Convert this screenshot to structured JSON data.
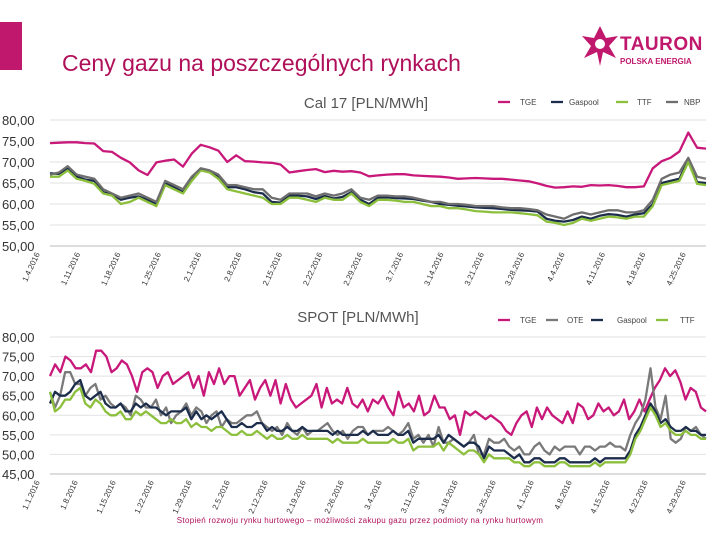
{
  "slide": {
    "title": "Ceny gazu na poszczególnych rynkach",
    "footer": "Stopień rozwoju rynku hurtowego – możliwości zakupu gazu przez podmioty na rynku hurtowym",
    "logo_name": "TAURON",
    "logo_sub": "POLSKA ENERGIA",
    "accent_color": "#c0186c"
  },
  "chart_data": [
    {
      "type": "line",
      "title": "Cal 17 [PLN/MWh]",
      "ylim": [
        50,
        80
      ],
      "yticks": [
        "50,00",
        "55,00",
        "60,00",
        "65,00",
        "70,00",
        "75,00",
        "80,00"
      ],
      "x_tick_labels": [
        "1.4.2016",
        "1.11.2016",
        "1.18.2016",
        "1.25.2016",
        "2.1.2016",
        "2.8.2016",
        "2.15.2016",
        "2.22.2016",
        "2.29.2016",
        "3.7.2016",
        "3.14.2016",
        "3.21.2016",
        "3.28.2016",
        "4.4.2016",
        "4.11.2016",
        "4.18.2016",
        "4.25.2016"
      ],
      "legend_position": "top-right",
      "series": [
        {
          "name": "TGE",
          "color": "#c8187a",
          "values": [
            74.5,
            74.6,
            74.7,
            74.7,
            74.5,
            74.4,
            72.6,
            72.4,
            71.0,
            69.9,
            68.0,
            66.9,
            69.9,
            70.3,
            70.6,
            68.9,
            72.0,
            74.1,
            73.5,
            72.7,
            70.0,
            71.6,
            70.2,
            70.1,
            69.9,
            69.8,
            69.4,
            67.5,
            67.8,
            68.1,
            68.3,
            67.6,
            67.9,
            67.7,
            67.8,
            67.5,
            66.6,
            66.8,
            67.0,
            67.1,
            67.1,
            66.8,
            66.7,
            66.6,
            66.5,
            66.3,
            66.0,
            66.1,
            66.2,
            66.1,
            66.0,
            66.0,
            65.8,
            65.6,
            65.4,
            64.9,
            64.3,
            63.9,
            64.0,
            64.2,
            64.1,
            64.5,
            64.4,
            64.5,
            64.3,
            64.0,
            64.0,
            64.2,
            68.5,
            70.2,
            71.0,
            72.5,
            77.0,
            73.4,
            73.2
          ]
        },
        {
          "name": "Gaspool",
          "color": "#1c2d4c",
          "values": [
            67.3,
            67.2,
            68.5,
            66.5,
            65.8,
            65.5,
            62.8,
            62.3,
            61.0,
            61.5,
            61.8,
            61.0,
            60.0,
            65.0,
            64.0,
            62.8,
            65.8,
            68.2,
            67.8,
            66.5,
            64.0,
            64.0,
            63.5,
            62.8,
            62.5,
            60.5,
            60.3,
            62.0,
            62.0,
            61.8,
            61.2,
            61.9,
            61.3,
            61.7,
            62.8,
            61.0,
            60.0,
            61.5,
            61.6,
            61.4,
            61.3,
            61.2,
            60.8,
            60.5,
            60.0,
            59.8,
            59.6,
            59.4,
            59.2,
            59.1,
            59.0,
            58.8,
            58.6,
            58.5,
            58.4,
            58.2,
            56.5,
            56.0,
            55.8,
            56.2,
            57.0,
            56.5,
            57.2,
            57.6,
            57.4,
            57.0,
            57.5,
            57.8,
            60.0,
            65.0,
            65.5,
            66.0,
            70.5,
            65.2,
            65.0
          ]
        },
        {
          "name": "TTF",
          "color": "#8cbf3c",
          "values": [
            66.5,
            66.5,
            68.0,
            66.0,
            65.5,
            64.8,
            62.5,
            62.0,
            60.0,
            60.5,
            61.5,
            60.5,
            59.5,
            64.5,
            63.5,
            62.5,
            65.5,
            68.0,
            67.5,
            66.0,
            63.5,
            63.0,
            62.5,
            62.0,
            61.5,
            60.0,
            60.0,
            61.5,
            61.5,
            61.0,
            60.5,
            61.5,
            61.0,
            61.0,
            62.5,
            60.5,
            59.5,
            61.0,
            61.0,
            60.8,
            60.5,
            60.5,
            60.0,
            59.5,
            59.5,
            59.0,
            59.0,
            58.7,
            58.3,
            58.2,
            58.0,
            58.0,
            58.0,
            57.8,
            57.6,
            57.3,
            55.8,
            55.5,
            55.0,
            55.5,
            56.5,
            56.0,
            56.5,
            57.0,
            56.8,
            56.5,
            57.0,
            57.0,
            59.5,
            64.5,
            65.0,
            65.5,
            70.0,
            64.8,
            64.5
          ]
        },
        {
          "name": "NBP",
          "color": "#6e6e6e",
          "values": [
            67.0,
            67.5,
            69.0,
            67.0,
            66.5,
            66.0,
            63.5,
            62.5,
            61.5,
            62.0,
            62.5,
            61.5,
            60.5,
            65.5,
            64.5,
            63.5,
            66.5,
            68.5,
            68.0,
            67.0,
            64.5,
            64.5,
            64.0,
            63.5,
            63.5,
            61.5,
            61.0,
            62.5,
            62.5,
            62.5,
            61.8,
            62.5,
            62.0,
            62.5,
            63.5,
            61.5,
            61.0,
            62.0,
            62.0,
            61.8,
            61.8,
            61.5,
            61.0,
            60.5,
            60.5,
            60.0,
            60.0,
            59.8,
            59.5,
            59.5,
            59.5,
            59.2,
            59.0,
            59.0,
            58.8,
            58.5,
            57.5,
            57.0,
            56.5,
            57.5,
            58.0,
            57.5,
            58.0,
            58.5,
            58.5,
            58.0,
            58.0,
            58.5,
            61.0,
            66.0,
            67.0,
            67.5,
            71.0,
            66.5,
            66.0
          ]
        }
      ]
    },
    {
      "type": "line",
      "title": "SPOT [PLN/MWh]",
      "ylim": [
        45,
        80
      ],
      "yticks": [
        "45,00",
        "50,00",
        "55,00",
        "60,00",
        "65,00",
        "70,00",
        "75,00",
        "80,00"
      ],
      "x_tick_labels": [
        "1.1.2016",
        "1.8.2016",
        "1.15.2016",
        "1.22.2016",
        "1.29.2016",
        "2.5.2016",
        "2.12.2016",
        "2.19.2016",
        "2.26.2016",
        "3.4.2016",
        "3.11.2016",
        "3.18.2016",
        "3.25.2016",
        "4.1.2016",
        "4.8.2016",
        "4.15.2016",
        "4.22.2016",
        "4.29.2016"
      ],
      "legend_position": "top-right",
      "series": [
        {
          "name": "TGE",
          "color": "#c8187a",
          "values": [
            70,
            73,
            71,
            75,
            74,
            72,
            72,
            73,
            71,
            76.5,
            76.5,
            75,
            71,
            72,
            74,
            73,
            70,
            66,
            71,
            72,
            71,
            67,
            70,
            71,
            68,
            69,
            70,
            71,
            67,
            70,
            65,
            71,
            68,
            72,
            68,
            70,
            70,
            65,
            67,
            69,
            64,
            67,
            69,
            65,
            69,
            63,
            68,
            64,
            62,
            63,
            64,
            65,
            68,
            62,
            67,
            63,
            64,
            63,
            67,
            63,
            62,
            64,
            61,
            64,
            63,
            65,
            62,
            60,
            66,
            62,
            63,
            61,
            65,
            60,
            61,
            65,
            62,
            62,
            59,
            60,
            55,
            61,
            60,
            61,
            60,
            59,
            60,
            59,
            58,
            56,
            55,
            58,
            60,
            61,
            57,
            62,
            59,
            62,
            60,
            59,
            58,
            61,
            58,
            63,
            62,
            59,
            60,
            63,
            61,
            62,
            60,
            61,
            64,
            59,
            61,
            64,
            61,
            64,
            67,
            69,
            72,
            70,
            71.5,
            68.5,
            64,
            67,
            66,
            62,
            61
          ]
        },
        {
          "name": "OTE",
          "color": "#7a7a7a",
          "values": [
            66,
            62,
            65,
            71,
            71,
            68,
            68,
            65,
            67,
            68,
            64,
            65,
            63,
            62,
            63,
            62,
            60,
            65,
            64,
            62,
            62,
            64,
            60,
            62,
            58,
            60,
            61,
            63,
            60,
            62,
            61,
            58,
            60,
            61,
            57,
            59,
            58,
            58,
            59,
            60,
            60,
            61,
            58,
            57,
            56,
            57,
            55,
            58,
            56,
            55,
            57,
            55,
            56,
            56,
            57,
            58,
            56,
            55,
            56,
            54,
            56,
            57,
            57,
            55,
            56,
            56,
            56,
            57,
            56,
            55,
            56,
            58,
            54,
            55,
            53,
            55,
            52,
            57,
            53,
            53,
            54,
            53,
            52,
            53,
            55,
            50,
            50,
            54,
            53,
            53,
            54,
            52,
            51,
            52,
            50,
            50,
            52,
            53,
            51,
            50,
            52,
            51,
            52,
            52,
            52,
            50,
            52,
            52,
            51,
            52,
            52,
            53,
            52,
            52,
            51,
            55,
            58,
            60,
            64,
            72,
            62,
            59,
            65,
            54,
            53,
            54,
            57,
            56,
            57,
            55,
            54
          ]
        },
        {
          "name": "Gaspool",
          "color": "#1c2d4c",
          "values": [
            63,
            66,
            65,
            65,
            66,
            68,
            69,
            65,
            64,
            65,
            66,
            63,
            62,
            62,
            63,
            61,
            61,
            63,
            62,
            63,
            62,
            62,
            61,
            60,
            61,
            61,
            61,
            62,
            59,
            61,
            59,
            60,
            59,
            60,
            61,
            59,
            57,
            57,
            58,
            57,
            57,
            58,
            58,
            56,
            57,
            56,
            56,
            57,
            56,
            56,
            57,
            56,
            56,
            56,
            56,
            56,
            55,
            56,
            55,
            55,
            55,
            55,
            56,
            55,
            56,
            55,
            55,
            55,
            56,
            55,
            55,
            56,
            53,
            54,
            54,
            54,
            54,
            55,
            53,
            55,
            54,
            53,
            52,
            53,
            53,
            52,
            49,
            52,
            51,
            51,
            51,
            50,
            49,
            50,
            48,
            48,
            49,
            49,
            48,
            48,
            48,
            49,
            49,
            48,
            48,
            48,
            48,
            48,
            49,
            48,
            49,
            49,
            49,
            49,
            49,
            51,
            55,
            57,
            60,
            63,
            61,
            58,
            59,
            57,
            56,
            56,
            57,
            56,
            56,
            55,
            55
          ]
        },
        {
          "name": "TTF",
          "color": "#8cbf3c",
          "values": [
            66,
            61,
            62,
            64,
            64,
            66,
            67,
            63,
            62,
            64,
            63,
            61,
            60,
            60,
            61,
            59,
            59,
            61,
            60,
            61,
            60,
            59,
            58,
            58,
            59,
            58,
            58,
            59,
            57,
            58,
            57,
            57,
            56,
            57,
            57,
            56,
            55,
            55,
            56,
            55,
            55,
            56,
            55,
            54,
            55,
            54,
            54,
            55,
            54,
            54,
            55,
            54,
            54,
            54,
            54,
            54,
            53,
            54,
            53,
            53,
            53,
            53,
            54,
            53,
            53,
            53,
            53,
            53,
            54,
            53,
            53,
            54,
            51,
            52,
            52,
            52,
            52,
            53,
            51,
            53,
            52,
            51,
            50,
            51,
            51,
            50,
            48,
            50,
            49,
            49,
            49,
            49,
            48,
            48,
            47,
            47,
            48,
            48,
            47,
            47,
            47,
            48,
            48,
            47,
            47,
            47,
            47,
            47,
            48,
            47,
            48,
            48,
            48,
            48,
            48,
            50,
            54,
            56,
            59,
            62,
            60,
            57,
            58,
            56,
            55,
            55,
            56,
            55,
            55,
            54,
            54
          ]
        }
      ]
    }
  ]
}
